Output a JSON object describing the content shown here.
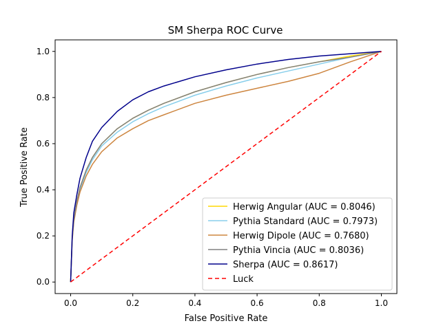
{
  "chart_data": {
    "type": "line",
    "title": "SM Sherpa ROC Curve",
    "xlabel": "False Positive Rate",
    "ylabel": "True Positive Rate",
    "xlim": [
      -0.05,
      1.05
    ],
    "ylim": [
      -0.05,
      1.05
    ],
    "xticks": [
      "0.0",
      "0.2",
      "0.4",
      "0.6",
      "0.8",
      "1.0"
    ],
    "yticks": [
      "0.0",
      "0.2",
      "0.4",
      "0.6",
      "0.8",
      "1.0"
    ],
    "grid": false,
    "legend_position": "lower-right",
    "series": [
      {
        "name": "Herwig Angular (AUC = 0.8046)",
        "color": "#ffd700",
        "style": "solid",
        "x": [
          0,
          0.005,
          0.01,
          0.02,
          0.03,
          0.05,
          0.07,
          0.1,
          0.15,
          0.2,
          0.25,
          0.3,
          0.4,
          0.5,
          0.6,
          0.7,
          0.8,
          0.9,
          1.0
        ],
        "y": [
          0,
          0.19,
          0.27,
          0.35,
          0.41,
          0.485,
          0.54,
          0.6,
          0.665,
          0.71,
          0.745,
          0.775,
          0.825,
          0.865,
          0.9,
          0.93,
          0.955,
          0.98,
          1.0
        ]
      },
      {
        "name": "Pythia Standard (AUC = 0.7973)",
        "color": "#87ceeb",
        "style": "solid",
        "x": [
          0,
          0.005,
          0.01,
          0.02,
          0.03,
          0.05,
          0.07,
          0.1,
          0.15,
          0.2,
          0.25,
          0.3,
          0.4,
          0.5,
          0.6,
          0.7,
          0.8,
          0.9,
          1.0
        ],
        "y": [
          0,
          0.185,
          0.265,
          0.345,
          0.4,
          0.475,
          0.53,
          0.59,
          0.65,
          0.695,
          0.73,
          0.76,
          0.81,
          0.85,
          0.885,
          0.915,
          0.945,
          0.975,
          1.0
        ]
      },
      {
        "name": "Herwig Dipole (AUC = 0.7680)",
        "color": "#cd853f",
        "style": "solid",
        "x": [
          0,
          0.005,
          0.01,
          0.02,
          0.03,
          0.05,
          0.07,
          0.1,
          0.15,
          0.2,
          0.25,
          0.3,
          0.4,
          0.5,
          0.6,
          0.7,
          0.8,
          0.9,
          1.0
        ],
        "y": [
          0,
          0.18,
          0.26,
          0.335,
          0.39,
          0.46,
          0.51,
          0.565,
          0.625,
          0.665,
          0.7,
          0.725,
          0.775,
          0.81,
          0.84,
          0.87,
          0.905,
          0.955,
          1.0
        ]
      },
      {
        "name": "Pythia Vincia (AUC = 0.8036)",
        "color": "#808080",
        "style": "solid",
        "x": [
          0,
          0.005,
          0.01,
          0.02,
          0.03,
          0.05,
          0.07,
          0.1,
          0.15,
          0.2,
          0.25,
          0.3,
          0.4,
          0.5,
          0.6,
          0.7,
          0.8,
          0.9,
          1.0
        ],
        "y": [
          0,
          0.19,
          0.27,
          0.35,
          0.41,
          0.485,
          0.54,
          0.6,
          0.665,
          0.71,
          0.745,
          0.775,
          0.825,
          0.865,
          0.9,
          0.93,
          0.955,
          0.975,
          1.0
        ]
      },
      {
        "name": "Sherpa (AUC = 0.8617)",
        "color": "#00008b",
        "style": "solid",
        "x": [
          0,
          0.005,
          0.01,
          0.02,
          0.03,
          0.05,
          0.07,
          0.1,
          0.15,
          0.2,
          0.25,
          0.3,
          0.4,
          0.5,
          0.6,
          0.7,
          0.8,
          0.9,
          1.0
        ],
        "y": [
          0,
          0.2,
          0.3,
          0.38,
          0.45,
          0.54,
          0.61,
          0.67,
          0.74,
          0.79,
          0.825,
          0.85,
          0.89,
          0.92,
          0.945,
          0.965,
          0.98,
          0.99,
          1.0
        ]
      },
      {
        "name": "Luck",
        "color": "#ff0000",
        "style": "dashed",
        "x": [
          0,
          1
        ],
        "y": [
          0,
          1
        ]
      }
    ]
  }
}
